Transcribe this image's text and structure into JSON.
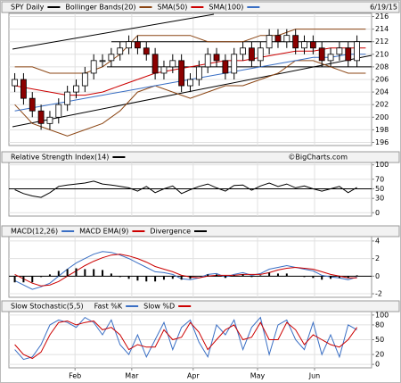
{
  "chart_data": [
    {
      "type": "candlestick",
      "date": "6/19/15",
      "ylim": [
        195.5,
        216.5
      ],
      "yticks": [
        196,
        198,
        200,
        202,
        204,
        206,
        208,
        210,
        212,
        214,
        216
      ],
      "candles": {
        "name": "SPY Daily",
        "color": "#000000",
        "up_color": "#ffffff",
        "down_color": "#8b0000",
        "x": [
          0,
          3,
          6,
          9,
          12,
          15,
          18,
          21,
          24,
          27,
          30,
          33,
          36,
          39,
          42,
          45,
          48,
          51,
          54,
          57,
          60,
          63,
          66,
          69,
          72,
          75,
          78,
          81,
          84,
          87,
          90,
          93,
          96,
          99,
          102,
          105,
          108,
          111,
          114,
          117
        ],
        "open": [
          205,
          206,
          203,
          201,
          199,
          200,
          202,
          204,
          205,
          207,
          209,
          209,
          210,
          211,
          212,
          211,
          210,
          207,
          208,
          209,
          205,
          206,
          208,
          210,
          209,
          207,
          210,
          211,
          209,
          211,
          213,
          212,
          213,
          211,
          212,
          211,
          209,
          210,
          211,
          209
        ],
        "close": [
          206,
          203,
          201,
          199,
          200,
          202,
          204,
          205,
          207,
          209,
          209,
          210,
          211,
          212,
          211,
          210,
          207,
          208,
          209,
          205,
          206,
          208,
          210,
          209,
          207,
          210,
          211,
          209,
          211,
          213,
          212,
          213,
          211,
          212,
          211,
          209,
          210,
          211,
          209,
          212
        ],
        "high": [
          207,
          207,
          204,
          202,
          201,
          203,
          205,
          206,
          208,
          210,
          210,
          211,
          212,
          213,
          213,
          212,
          211,
          209,
          210,
          210,
          207,
          209,
          211,
          211,
          210,
          211,
          212,
          212,
          212,
          214,
          214,
          214,
          214,
          213,
          213,
          212,
          211,
          212,
          212,
          213
        ],
        "low": [
          204,
          202,
          200,
          198,
          198,
          199,
          201,
          203,
          204,
          206,
          208,
          208,
          209,
          210,
          210,
          209,
          206,
          206,
          207,
          204,
          204,
          205,
          207,
          208,
          206,
          206,
          209,
          208,
          208,
          210,
          211,
          211,
          210,
          210,
          210,
          208,
          208,
          209,
          208,
          208
        ]
      },
      "series": [
        {
          "name": "Bollinger Bands(20)",
          "color": "#8b4513",
          "x": [
            0,
            6,
            12,
            18,
            24,
            30,
            36,
            42,
            48,
            54,
            60,
            66,
            72,
            78,
            84,
            90,
            96,
            102,
            108,
            114,
            120
          ],
          "upper": [
            208,
            208,
            207,
            207,
            207,
            208,
            210,
            213,
            213,
            213,
            213,
            212,
            212,
            212,
            213,
            213,
            214,
            214,
            214,
            214,
            214
          ],
          "lower": [
            202,
            199,
            198,
            197,
            198,
            199,
            201,
            204,
            205,
            204,
            203,
            204,
            205,
            205,
            206,
            207,
            209,
            209,
            208,
            207,
            207
          ]
        },
        {
          "name": "SMA(50)",
          "color": "#cc0000",
          "x": [
            0,
            6,
            12,
            18,
            24,
            30,
            36,
            42,
            48,
            54,
            60,
            66,
            72,
            78,
            84,
            90,
            96,
            102,
            108,
            114,
            120
          ],
          "values": [
            205,
            204.5,
            204,
            203.5,
            203.5,
            204,
            205,
            206,
            207,
            207.5,
            208,
            208.5,
            209,
            209,
            209.5,
            210,
            210.5,
            210.5,
            211,
            211,
            211
          ]
        },
        {
          "name": "SMA(100)",
          "color": "#3a6fc4",
          "x": [
            0,
            6,
            12,
            18,
            24,
            30,
            36,
            42,
            48,
            54,
            60,
            66,
            72,
            78,
            84,
            90,
            96,
            102,
            108,
            114,
            120
          ],
          "values": [
            201,
            201.5,
            202,
            202.5,
            203,
            203.5,
            204,
            204.5,
            205,
            205.5,
            206,
            206.5,
            207,
            207.5,
            208,
            208.5,
            209,
            209.5,
            209.5,
            210,
            210
          ]
        }
      ]
    },
    {
      "type": "line",
      "title": "Relative Strength Index(14)",
      "credit": "©BigCharts.com",
      "ylim": [
        -7,
        105
      ],
      "yticks": [
        0,
        30,
        50,
        70,
        100
      ],
      "ref": 50,
      "series": [
        {
          "name": "RSI",
          "color": "#000000",
          "x": [
            0,
            3,
            6,
            9,
            12,
            15,
            18,
            21,
            24,
            27,
            30,
            33,
            36,
            39,
            42,
            45,
            48,
            51,
            54,
            57,
            60,
            63,
            66,
            69,
            72,
            75,
            78,
            81,
            84,
            87,
            90,
            93,
            96,
            99,
            102,
            105,
            108,
            111,
            114,
            117
          ],
          "values": [
            48,
            40,
            35,
            32,
            42,
            55,
            58,
            60,
            62,
            66,
            60,
            58,
            55,
            52,
            45,
            55,
            42,
            50,
            56,
            40,
            48,
            55,
            60,
            52,
            45,
            57,
            58,
            47,
            56,
            62,
            55,
            60,
            52,
            56,
            50,
            45,
            50,
            55,
            42,
            53
          ]
        }
      ]
    },
    {
      "type": "macd",
      "ylim": [
        -2.4,
        4.5
      ],
      "yticks": [
        -2,
        0,
        2,
        4
      ],
      "ref": 0,
      "x": [
        0,
        3,
        6,
        9,
        12,
        15,
        18,
        21,
        24,
        27,
        30,
        33,
        36,
        39,
        42,
        45,
        48,
        51,
        54,
        57,
        60,
        63,
        66,
        69,
        72,
        75,
        78,
        81,
        84,
        87,
        90,
        93,
        96,
        99,
        102,
        105,
        108,
        111,
        114,
        117
      ],
      "series": [
        {
          "name": "MACD(12,26)",
          "color": "#3a6fc4",
          "values": [
            -0.5,
            -1,
            -1.5,
            -1.2,
            -0.8,
            0,
            0.8,
            1.5,
            2,
            2.5,
            2.8,
            2.7,
            2.4,
            2,
            1.5,
            1,
            0.5,
            0.4,
            0.2,
            -0.3,
            -0.4,
            -0.2,
            0.2,
            0.3,
            -0.1,
            0.2,
            0.4,
            0.1,
            0.3,
            0.8,
            1,
            1.2,
            1,
            0.8,
            0.6,
            0.1,
            -0.1,
            -0.2,
            -0.4,
            -0.1
          ]
        },
        {
          "name": "MACD EMA(9)",
          "color": "#cc0000",
          "values": [
            0.2,
            -0.3,
            -0.8,
            -1.1,
            -1,
            -0.6,
            0,
            0.6,
            1.2,
            1.7,
            2.1,
            2.4,
            2.5,
            2.3,
            2,
            1.6,
            1.1,
            0.8,
            0.5,
            0.1,
            -0.1,
            -0.2,
            0,
            0.1,
            0.1,
            0.1,
            0.2,
            0.2,
            0.2,
            0.4,
            0.7,
            0.9,
            1,
            0.9,
            0.8,
            0.5,
            0.2,
            0,
            -0.2,
            -0.2
          ]
        },
        {
          "name": "Divergence",
          "color": "#000000",
          "bars": true,
          "values": [
            -0.7,
            -0.7,
            -0.7,
            -0.1,
            0.2,
            0.6,
            0.8,
            0.9,
            0.8,
            0.8,
            0.7,
            0.3,
            -0.1,
            -0.3,
            -0.5,
            -0.6,
            -0.6,
            -0.4,
            -0.3,
            -0.4,
            -0.3,
            0,
            0.2,
            0.2,
            -0.2,
            0.1,
            0.2,
            -0.1,
            0.1,
            0.4,
            0.3,
            0.3,
            0,
            -0.1,
            -0.2,
            -0.4,
            -0.3,
            -0.2,
            -0.2,
            0.1
          ]
        }
      ]
    },
    {
      "type": "line",
      "title": "Slow Stochastic(5,5)",
      "ylim": [
        -7,
        107
      ],
      "yticks": [
        0,
        20,
        50,
        80,
        100
      ],
      "xlim": [
        -2,
        122
      ],
      "xticks": [
        {
          "value": 20.6,
          "label": "Feb"
        },
        {
          "value": 40,
          "label": "Mar"
        },
        {
          "value": 61,
          "label": "Apr"
        },
        {
          "value": 83,
          "label": "May"
        },
        {
          "value": 102.5,
          "label": "Jun"
        }
      ],
      "series": [
        {
          "name": "Fast %K",
          "color": "#3a6fc4",
          "x": [
            0,
            3,
            6,
            9,
            12,
            15,
            18,
            21,
            24,
            27,
            30,
            33,
            36,
            39,
            42,
            45,
            48,
            51,
            54,
            57,
            60,
            63,
            66,
            69,
            72,
            75,
            78,
            81,
            84,
            87,
            90,
            93,
            96,
            99,
            102,
            105,
            108,
            111,
            114,
            117
          ],
          "values": [
            30,
            10,
            15,
            40,
            80,
            90,
            85,
            75,
            95,
            85,
            60,
            90,
            40,
            20,
            60,
            15,
            50,
            85,
            30,
            75,
            90,
            45,
            15,
            80,
            60,
            90,
            30,
            75,
            95,
            20,
            80,
            90,
            50,
            30,
            85,
            20,
            60,
            15,
            80,
            70
          ]
        },
        {
          "name": "Slow %D",
          "color": "#cc0000",
          "x": [
            0,
            3,
            6,
            9,
            12,
            15,
            18,
            21,
            24,
            27,
            30,
            33,
            36,
            39,
            42,
            45,
            48,
            51,
            54,
            57,
            60,
            63,
            66,
            69,
            72,
            75,
            78,
            81,
            84,
            87,
            90,
            93,
            96,
            99,
            102,
            105,
            108,
            111,
            114,
            117
          ],
          "values": [
            40,
            20,
            12,
            25,
            60,
            85,
            88,
            80,
            85,
            88,
            70,
            75,
            60,
            30,
            40,
            35,
            35,
            70,
            50,
            55,
            85,
            65,
            30,
            50,
            70,
            80,
            50,
            55,
            85,
            50,
            50,
            85,
            70,
            40,
            60,
            50,
            40,
            35,
            50,
            75
          ]
        }
      ]
    }
  ]
}
